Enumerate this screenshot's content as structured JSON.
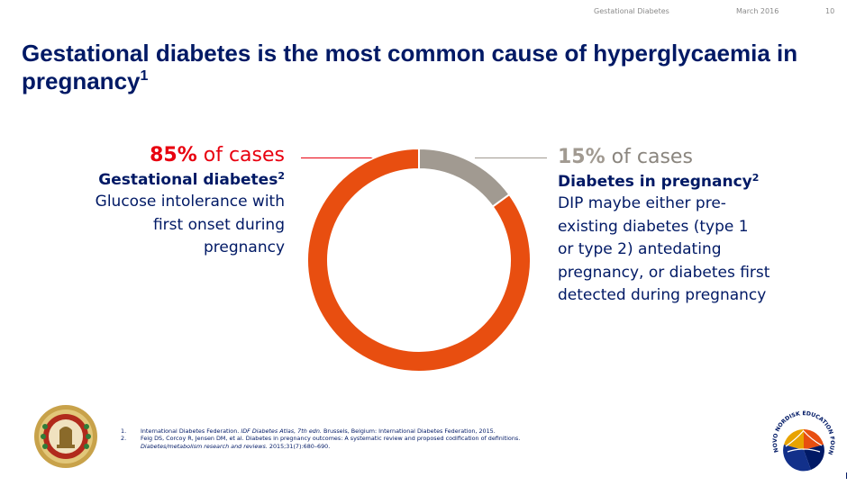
{
  "header": {
    "topic": "Gestational Diabetes",
    "date": "March 2016",
    "page": "10"
  },
  "slide": {
    "title": "Gestational diabetes is the most common cause of hyperglycaemia in pregnancy",
    "title_ref": "1"
  },
  "colors": {
    "gdm": "#e84e10",
    "dip": "#a19a91",
    "navy": "#001965",
    "red_text": "#e8000f"
  },
  "left_block": {
    "percent": "85%",
    "unit": "of cases",
    "heading": "Gestational diabetes",
    "heading_ref": "2",
    "description_lines": [
      "Glucose intolerance with",
      "first onset during",
      "pregnancy"
    ]
  },
  "right_block": {
    "percent": "15%",
    "unit": "of cases",
    "heading": "Diabetes in pregnancy",
    "heading_ref": "2",
    "description_lines": [
      "DIP maybe either pre-",
      "existing diabetes (type 1",
      "or type 2) antedating",
      "pregnancy, or diabetes first",
      "detected during pregnancy"
    ]
  },
  "chart_data": {
    "type": "pie",
    "style": "donut",
    "slices": [
      {
        "label": "Diabetes in pregnancy",
        "value": 15,
        "color": "#a19a91"
      },
      {
        "label": "Gestational diabetes",
        "value": 85,
        "color": "#e84e10"
      }
    ],
    "start_angle_deg": 0,
    "direction": "clockwise"
  },
  "references": [
    {
      "num": "1.",
      "parts": [
        {
          "text": "International Diabetes Federation. ",
          "italic": false
        },
        {
          "text": "IDF Diabetes Atlas, 7th edn.",
          "italic": true
        },
        {
          "text": " Brussels, Belgium: International Diabetes Federation, 2015.",
          "italic": false
        }
      ]
    },
    {
      "num": "2.",
      "parts": [
        {
          "text": "Feig DS, Corcoy R, Jensen DM, et al. Diabetes in pregnancy outcomes: A systematic review and proposed codification of definitions.",
          "italic": false
        }
      ]
    },
    {
      "num": "",
      "parts": [
        {
          "text": "Diabetes/metabolism research and reviews.",
          "italic": true
        },
        {
          "text": " 2015;31(7):680–690.",
          "italic": false
        }
      ]
    }
  ],
  "logos": {
    "left": "government-seal-emblem",
    "right": "novo-nordisk-education-foundation-logo",
    "right_text": "NOVO NORDISK EDUCATION FOUNDATION"
  }
}
